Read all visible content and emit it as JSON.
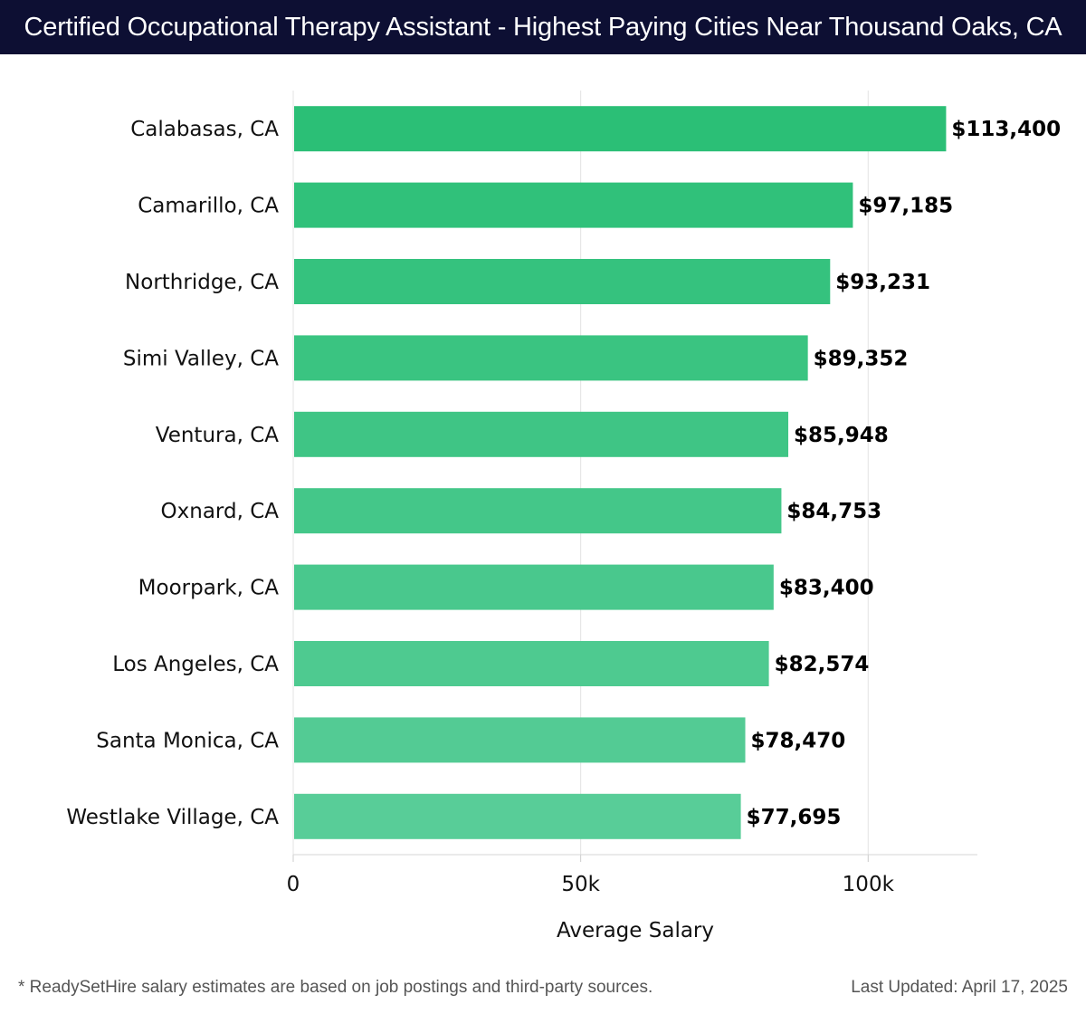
{
  "header": {
    "title": "Certified Occupational Therapy Assistant - Highest Paying Cities Near Thousand Oaks, CA"
  },
  "chart_data": {
    "type": "bar",
    "orientation": "horizontal",
    "categories": [
      "Calabasas, CA",
      "Camarillo, CA",
      "Northridge, CA",
      "Simi Valley, CA",
      "Ventura, CA",
      "Oxnard, CA",
      "Moorpark, CA",
      "Los Angeles, CA",
      "Santa Monica, CA",
      "Westlake Village, CA"
    ],
    "values": [
      113400,
      97185,
      93231,
      89352,
      85948,
      84753,
      83400,
      82574,
      78470,
      77695
    ],
    "value_labels": [
      "$113,400",
      "$97,185",
      "$93,231",
      "$89,352",
      "$85,948",
      "$84,753",
      "$83,400",
      "$82,574",
      "$78,470",
      "$77,695"
    ],
    "xlabel": "Average Salary",
    "ylabel": "",
    "xlim": [
      0,
      119000
    ],
    "xticks": [
      0,
      50000,
      100000
    ],
    "xtick_labels": [
      "0",
      "50k",
      "100k"
    ],
    "grid": true,
    "colors": {
      "top_bar": "#2bbf76",
      "bars": "#4cc98e",
      "grid": "#e3e3e3"
    }
  },
  "footer": {
    "note": "* ReadySetHire salary estimates are based on job postings and third-party sources.",
    "updated": "Last Updated: April 17, 2025"
  }
}
